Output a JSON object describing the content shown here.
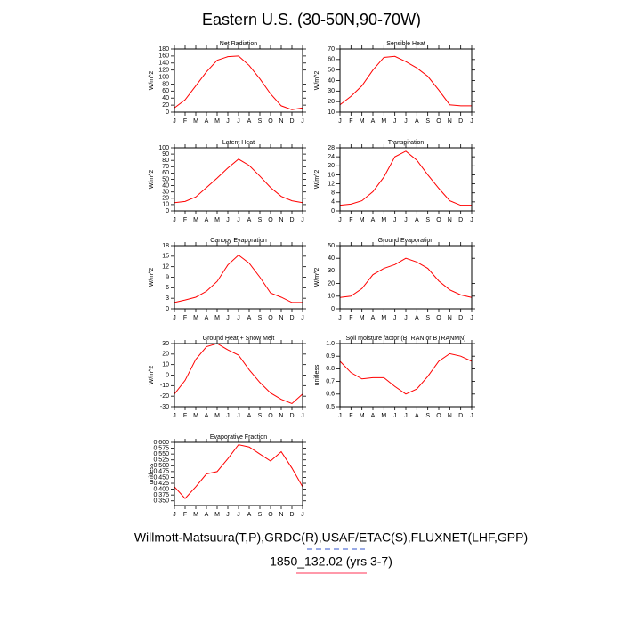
{
  "title": "Eastern U.S. (30-50N,90-70W)",
  "footer_lines": [
    "Willmott-Matsuura(T,P),GRDC(R),USAF/ETAC(S),FLUXNET(LHF,GPP)",
    "1850_132.02 (yrs 3-7)"
  ],
  "chart_data": [
    {
      "type": "line",
      "title": "Net Radiation",
      "ylabel": "W/m^2",
      "categories": [
        "J",
        "F",
        "M",
        "A",
        "M",
        "J",
        "J",
        "A",
        "S",
        "O",
        "N",
        "D",
        "J"
      ],
      "series": [
        {
          "color": "#ff0000",
          "values": [
            12,
            35,
            75,
            115,
            148,
            158,
            160,
            133,
            95,
            52,
            18,
            7,
            12
          ]
        }
      ],
      "ylim": [
        0,
        180
      ],
      "yticks": [
        0,
        20,
        40,
        60,
        80,
        100,
        120,
        140,
        160,
        180
      ]
    },
    {
      "type": "line",
      "title": "Sensible Heat",
      "ylabel": "W/m^2",
      "categories": [
        "J",
        "F",
        "M",
        "A",
        "M",
        "J",
        "J",
        "A",
        "S",
        "O",
        "N",
        "D",
        "J"
      ],
      "series": [
        {
          "color": "#ff0000",
          "values": [
            17,
            25,
            35,
            50,
            62,
            63,
            58,
            52,
            44,
            31,
            17,
            16,
            16
          ]
        }
      ],
      "ylim": [
        10,
        70
      ],
      "yticks": [
        10,
        20,
        30,
        40,
        50,
        60,
        70
      ]
    },
    {
      "type": "line",
      "title": "Latent Heat",
      "ylabel": "W/m^2",
      "categories": [
        "J",
        "F",
        "M",
        "A",
        "M",
        "J",
        "J",
        "A",
        "S",
        "O",
        "N",
        "D",
        "J"
      ],
      "series": [
        {
          "color": "#ff0000",
          "values": [
            13,
            15,
            22,
            37,
            52,
            68,
            82,
            72,
            55,
            37,
            23,
            16,
            13
          ]
        }
      ],
      "ylim": [
        0,
        100
      ],
      "yticks": [
        0,
        10,
        20,
        30,
        40,
        50,
        60,
        70,
        80,
        90,
        100
      ]
    },
    {
      "type": "line",
      "title": "Transpiration",
      "ylabel": "W/m^2",
      "categories": [
        "J",
        "F",
        "M",
        "A",
        "M",
        "J",
        "J",
        "A",
        "S",
        "O",
        "N",
        "D",
        "J"
      ],
      "series": [
        {
          "color": "#ff0000",
          "values": [
            2.5,
            3,
            4.5,
            8.5,
            15,
            24,
            26.5,
            22.5,
            16,
            10,
            4.5,
            2.5,
            2.5
          ]
        }
      ],
      "ylim": [
        0,
        28
      ],
      "yticks": [
        0,
        4,
        8,
        12,
        16,
        20,
        24,
        28
      ]
    },
    {
      "type": "line",
      "title": "Canopy Evaporation",
      "ylabel": "W/m^2",
      "categories": [
        "J",
        "F",
        "M",
        "A",
        "M",
        "J",
        "J",
        "A",
        "S",
        "O",
        "N",
        "D",
        "J"
      ],
      "series": [
        {
          "color": "#ff0000",
          "values": [
            1.8,
            2.5,
            3.3,
            5,
            7.8,
            12.5,
            15.3,
            13,
            9,
            4.5,
            3.3,
            1.8,
            1.8
          ]
        }
      ],
      "ylim": [
        0,
        18
      ],
      "yticks": [
        0,
        3,
        6,
        9,
        12,
        15,
        18
      ]
    },
    {
      "type": "line",
      "title": "Ground Evaporation",
      "ylabel": "W/m^2",
      "categories": [
        "J",
        "F",
        "M",
        "A",
        "M",
        "J",
        "J",
        "A",
        "S",
        "O",
        "N",
        "D",
        "J"
      ],
      "series": [
        {
          "color": "#ff0000",
          "values": [
            9,
            10,
            16,
            27,
            32,
            35,
            40,
            37,
            32,
            22,
            15,
            11,
            9
          ]
        }
      ],
      "ylim": [
        0,
        50
      ],
      "yticks": [
        0,
        10,
        20,
        30,
        40,
        50
      ]
    },
    {
      "type": "line",
      "title": "Ground Heat + Snow Melt",
      "ylabel": "W/m^2",
      "categories": [
        "J",
        "F",
        "M",
        "A",
        "M",
        "J",
        "J",
        "A",
        "S",
        "O",
        "N",
        "D",
        "J"
      ],
      "series": [
        {
          "color": "#ff0000",
          "values": [
            -18,
            -5,
            15,
            27,
            30,
            24,
            19,
            5,
            -7,
            -17,
            -23,
            -27,
            -18
          ]
        }
      ],
      "ylim": [
        -30,
        30
      ],
      "yticks": [
        -30,
        -20,
        -10,
        0,
        10,
        20,
        30
      ]
    },
    {
      "type": "line",
      "title": "Soil moisture factor (BTRAN or BTRANMN)",
      "ylabel": "unitless",
      "categories": [
        "J",
        "F",
        "M",
        "A",
        "M",
        "J",
        "J",
        "A",
        "S",
        "O",
        "N",
        "D",
        "J"
      ],
      "series": [
        {
          "color": "#ff0000",
          "values": [
            0.86,
            0.77,
            0.72,
            0.73,
            0.73,
            0.66,
            0.6,
            0.64,
            0.74,
            0.86,
            0.92,
            0.9,
            0.86
          ]
        }
      ],
      "ylim": [
        0.5,
        1
      ],
      "yticks": [
        0.5,
        0.6,
        0.7,
        0.8,
        0.9,
        {
          "value": 1,
          "label": "1.0"
        }
      ]
    },
    {
      "type": "line",
      "title": "Evaporative Fraction",
      "ylabel": "unitless",
      "categories": [
        "J",
        "F",
        "M",
        "A",
        "M",
        "J",
        "J",
        "A",
        "S",
        "O",
        "N",
        "D",
        "J"
      ],
      "series": [
        {
          "color": "#ff0000",
          "values": [
            0.41,
            0.36,
            0.41,
            0.465,
            0.475,
            0.53,
            0.59,
            0.58,
            0.55,
            0.52,
            0.56,
            0.49,
            0.41
          ]
        }
      ],
      "ylim": [
        0.33,
        0.6
      ],
      "yticks": [
        {
          "value": 0.35,
          "label": "0.350"
        },
        {
          "value": 0.375,
          "label": "0.375"
        },
        {
          "value": 0.4,
          "label": "0.400"
        },
        {
          "value": 0.425,
          "label": "0.425"
        },
        {
          "value": 0.45,
          "label": "0.450"
        },
        {
          "value": 0.475,
          "label": "0.475"
        },
        {
          "value": 0.5,
          "label": "0.500"
        },
        {
          "value": 0.525,
          "label": "0.525"
        },
        {
          "value": 0.55,
          "label": "0.550"
        },
        {
          "value": 0.575,
          "label": "0.575"
        },
        {
          "value": 0.6,
          "label": "0.600"
        }
      ]
    }
  ]
}
